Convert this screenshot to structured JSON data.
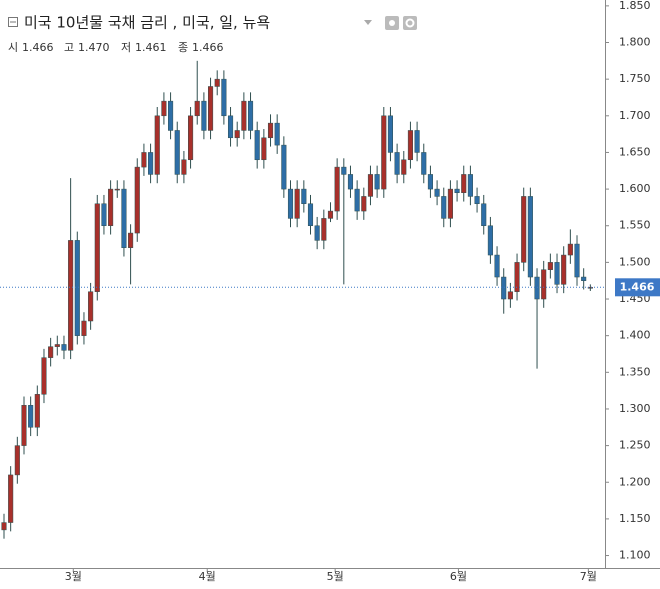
{
  "chart_data": {
    "type": "candlestick",
    "title": "미국 10년물 국채 금리 , 미국, 일, 뉴욕",
    "header": {
      "open_label": "시",
      "open": "1.466",
      "high_label": "고",
      "high": "1.470",
      "low_label": "저",
      "low": "1.461",
      "close_label": "종",
      "close": "1.466"
    },
    "up_color": "#a8302b",
    "down_color": "#2e6ea6",
    "open": [
      1.135,
      1.145,
      1.21,
      1.25,
      1.305,
      1.275,
      1.32,
      1.37,
      1.385,
      1.388,
      1.38,
      1.53,
      1.4,
      1.42,
      1.46,
      1.58,
      1.55,
      1.6,
      1.6,
      1.52,
      1.54,
      1.63,
      1.65,
      1.62,
      1.7,
      1.72,
      1.68,
      1.62,
      1.64,
      1.7,
      1.72,
      1.68,
      1.74,
      1.75,
      1.7,
      1.67,
      1.68,
      1.72,
      1.68,
      1.64,
      1.67,
      1.69,
      1.66,
      1.6,
      1.56,
      1.6,
      1.58,
      1.55,
      1.53,
      1.56,
      1.57,
      1.63,
      1.62,
      1.6,
      1.57,
      1.59,
      1.62,
      1.6,
      1.7,
      1.65,
      1.62,
      1.64,
      1.68,
      1.65,
      1.62,
      1.6,
      1.59,
      1.56,
      1.6,
      1.595,
      1.62,
      1.59,
      1.58,
      1.55,
      1.51,
      1.48,
      1.45,
      1.46,
      1.5,
      1.59,
      1.48,
      1.45,
      1.49,
      1.5,
      1.47,
      1.51,
      1.525,
      1.48,
      1.466
    ],
    "high": [
      1.157,
      1.222,
      1.262,
      1.317,
      1.317,
      1.332,
      1.382,
      1.397,
      1.4,
      1.4,
      1.615,
      1.542,
      1.432,
      1.472,
      1.592,
      1.592,
      1.612,
      1.612,
      1.612,
      1.552,
      1.642,
      1.662,
      1.662,
      1.712,
      1.732,
      1.732,
      1.692,
      1.652,
      1.712,
      1.775,
      1.732,
      1.752,
      1.762,
      1.762,
      1.712,
      1.692,
      1.732,
      1.732,
      1.692,
      1.682,
      1.702,
      1.702,
      1.672,
      1.612,
      1.612,
      1.612,
      1.592,
      1.562,
      1.572,
      1.582,
      1.642,
      1.642,
      1.632,
      1.612,
      1.602,
      1.632,
      1.632,
      1.712,
      1.712,
      1.662,
      1.652,
      1.692,
      1.692,
      1.662,
      1.632,
      1.612,
      1.602,
      1.612,
      1.612,
      1.632,
      1.632,
      1.602,
      1.592,
      1.562,
      1.522,
      1.492,
      1.472,
      1.512,
      1.602,
      1.602,
      1.492,
      1.502,
      1.512,
      1.512,
      1.522,
      1.545,
      1.537,
      1.492,
      1.47
    ],
    "low": [
      1.123,
      1.133,
      1.198,
      1.238,
      1.263,
      1.263,
      1.308,
      1.358,
      1.373,
      1.368,
      1.368,
      1.388,
      1.388,
      1.408,
      1.448,
      1.538,
      1.538,
      1.588,
      1.508,
      1.47,
      1.528,
      1.618,
      1.608,
      1.608,
      1.688,
      1.668,
      1.608,
      1.608,
      1.628,
      1.688,
      1.668,
      1.668,
      1.728,
      1.688,
      1.658,
      1.658,
      1.668,
      1.668,
      1.628,
      1.628,
      1.658,
      1.648,
      1.588,
      1.548,
      1.548,
      1.568,
      1.538,
      1.518,
      1.518,
      1.555,
      1.558,
      1.47,
      1.588,
      1.558,
      1.558,
      1.578,
      1.588,
      1.588,
      1.638,
      1.608,
      1.608,
      1.628,
      1.638,
      1.608,
      1.588,
      1.578,
      1.548,
      1.548,
      1.583,
      1.583,
      1.578,
      1.568,
      1.538,
      1.498,
      1.468,
      1.43,
      1.438,
      1.448,
      1.488,
      1.468,
      1.355,
      1.438,
      1.478,
      1.458,
      1.458,
      1.498,
      1.468,
      1.463,
      1.461
    ],
    "close": [
      1.145,
      1.21,
      1.25,
      1.305,
      1.275,
      1.32,
      1.37,
      1.385,
      1.388,
      1.38,
      1.53,
      1.4,
      1.42,
      1.46,
      1.58,
      1.55,
      1.6,
      1.6,
      1.52,
      1.54,
      1.63,
      1.65,
      1.62,
      1.7,
      1.72,
      1.68,
      1.62,
      1.64,
      1.7,
      1.72,
      1.68,
      1.74,
      1.75,
      1.7,
      1.67,
      1.68,
      1.72,
      1.68,
      1.64,
      1.67,
      1.69,
      1.66,
      1.6,
      1.56,
      1.6,
      1.58,
      1.55,
      1.53,
      1.56,
      1.57,
      1.63,
      1.62,
      1.6,
      1.57,
      1.59,
      1.62,
      1.6,
      1.7,
      1.65,
      1.62,
      1.64,
      1.68,
      1.65,
      1.62,
      1.6,
      1.59,
      1.56,
      1.6,
      1.595,
      1.62,
      1.59,
      1.58,
      1.55,
      1.51,
      1.48,
      1.45,
      1.46,
      1.5,
      1.59,
      1.48,
      1.45,
      1.49,
      1.5,
      1.47,
      1.51,
      1.525,
      1.48,
      1.475,
      1.466
    ],
    "xlim": [
      -0.6,
      90.2
    ],
    "xticks": [
      {
        "value": 10.4,
        "label": "3월"
      },
      {
        "value": 30.5,
        "label": "4월"
      },
      {
        "value": 49.7,
        "label": "5월"
      },
      {
        "value": 68.2,
        "label": "6월"
      },
      {
        "value": 87.7,
        "label": "7월"
      }
    ],
    "ylim": [
      1.083,
      1.858
    ],
    "yticks": [
      {
        "value": 1.1,
        "label": "1.100"
      },
      {
        "value": 1.15,
        "label": "1.150"
      },
      {
        "value": 1.2,
        "label": "1.200"
      },
      {
        "value": 1.25,
        "label": "1.250"
      },
      {
        "value": 1.3,
        "label": "1.300"
      },
      {
        "value": 1.35,
        "label": "1.350"
      },
      {
        "value": 1.4,
        "label": "1.400"
      },
      {
        "value": 1.45,
        "label": "1.450"
      },
      {
        "value": 1.5,
        "label": "1.500"
      },
      {
        "value": 1.55,
        "label": "1.550"
      },
      {
        "value": 1.6,
        "label": "1.600"
      },
      {
        "value": 1.65,
        "label": "1.650"
      },
      {
        "value": 1.7,
        "label": "1.700"
      },
      {
        "value": 1.75,
        "label": "1.750"
      },
      {
        "value": 1.8,
        "label": "1.800"
      },
      {
        "value": 1.85,
        "label": "1.850"
      }
    ],
    "last_price": {
      "value": 1.466,
      "label": "1.466",
      "color": "#3d78c6"
    }
  }
}
